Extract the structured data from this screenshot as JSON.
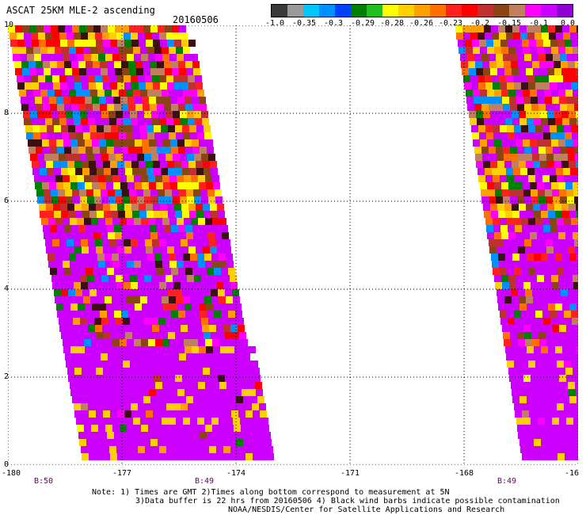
{
  "header": {
    "title": "ASCAT 25KM MLE-2 ascending",
    "date": "20160506"
  },
  "colorbar": {
    "colors": [
      "#3a3a3a",
      "#9a9a9a",
      "#00c8ff",
      "#0090ff",
      "#0040ff",
      "#008000",
      "#20c020",
      "#ffff00",
      "#ffd000",
      "#ffa000",
      "#ff7000",
      "#ff2020",
      "#ff0000",
      "#c03030",
      "#8b4513",
      "#c08060",
      "#ff00ff",
      "#cc00ff",
      "#9000d0"
    ],
    "labels": [
      "-1.0",
      "-0.35",
      "-0.3",
      "-0.29",
      "-0.28",
      "-0.26",
      "-0.23",
      "-0.2",
      "-0.15",
      "-0.1",
      "0.0"
    ]
  },
  "axes": {
    "y_ticks": [
      "10",
      "8",
      "6",
      "4",
      "2",
      "0"
    ],
    "x_ticks": [
      "-180",
      "-177",
      "-174",
      "-171",
      "-168",
      "-16"
    ],
    "time_labels": [
      "B:50",
      "B:49",
      "B:49"
    ],
    "grid": "dotted"
  },
  "notes": {
    "line1": "Note: 1) Times are GMT 2)Times along bottom correspond to measurement at 5N",
    "line2": "3)Data buffer is 22 hrs from 20160506 4) Black wind barbs indicate possible contamination",
    "line3": "NOAA/NESDIS/Center for Satellite Applications and Research"
  }
}
